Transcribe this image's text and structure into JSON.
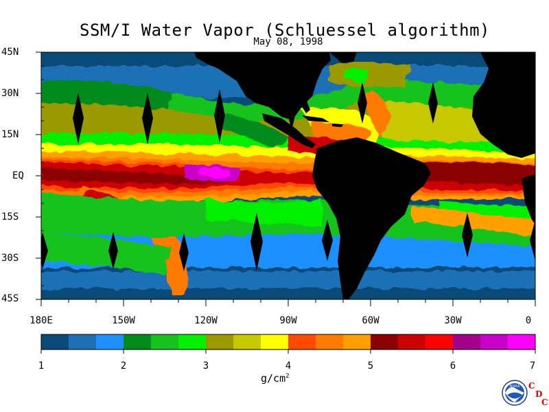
{
  "title": "SSM/I Water Vapor (Schluessel algorithm)",
  "subtitle": "May 08, 1998",
  "map": {
    "lat_labels": [
      "45N",
      "30N",
      "15N",
      "EQ",
      "15S",
      "30S",
      "45S"
    ],
    "lon_labels": [
      "180E",
      "150W",
      "120W",
      "90W",
      "60W",
      "30W",
      "0"
    ],
    "colors": {
      "land": "#000000",
      "ocean_dark": "#0a4a78",
      "ocean_mid": "#1f6fb5",
      "ocean_light": "#1e90ff",
      "green_dark": "#008b1a",
      "green_mid": "#16c21b",
      "green_light": "#00f000",
      "olive": "#9a9a00",
      "yellow_green": "#c8c800",
      "yellow": "#ffff00",
      "orange_red": "#ff4a00",
      "orange": "#ff7a00",
      "orange_light": "#ffa000",
      "dark_red": "#8b0000",
      "red": "#cc0000",
      "bright_red": "#ff0000",
      "purple": "#a0008a",
      "magenta": "#c800c8",
      "pink": "#ff00ff"
    }
  },
  "colorbar": {
    "labels": [
      "1",
      "2",
      "3",
      "4",
      "5",
      "6",
      "7"
    ],
    "units": "g/cm",
    "units_exp": "2",
    "colors": [
      "#0a4a78",
      "#1f6fb5",
      "#1e90ff",
      "#008b1a",
      "#16c21b",
      "#00f000",
      "#9a9a00",
      "#c8c800",
      "#ffff00",
      "#ff4a00",
      "#ff7a00",
      "#ffa000",
      "#8b0000",
      "#cc0000",
      "#ff0000",
      "#a0008a",
      "#c800c8",
      "#ff00ff"
    ]
  },
  "logos": {
    "noaa_text": "NOAA",
    "cdc_letters": [
      "C",
      "D",
      "C"
    ]
  }
}
